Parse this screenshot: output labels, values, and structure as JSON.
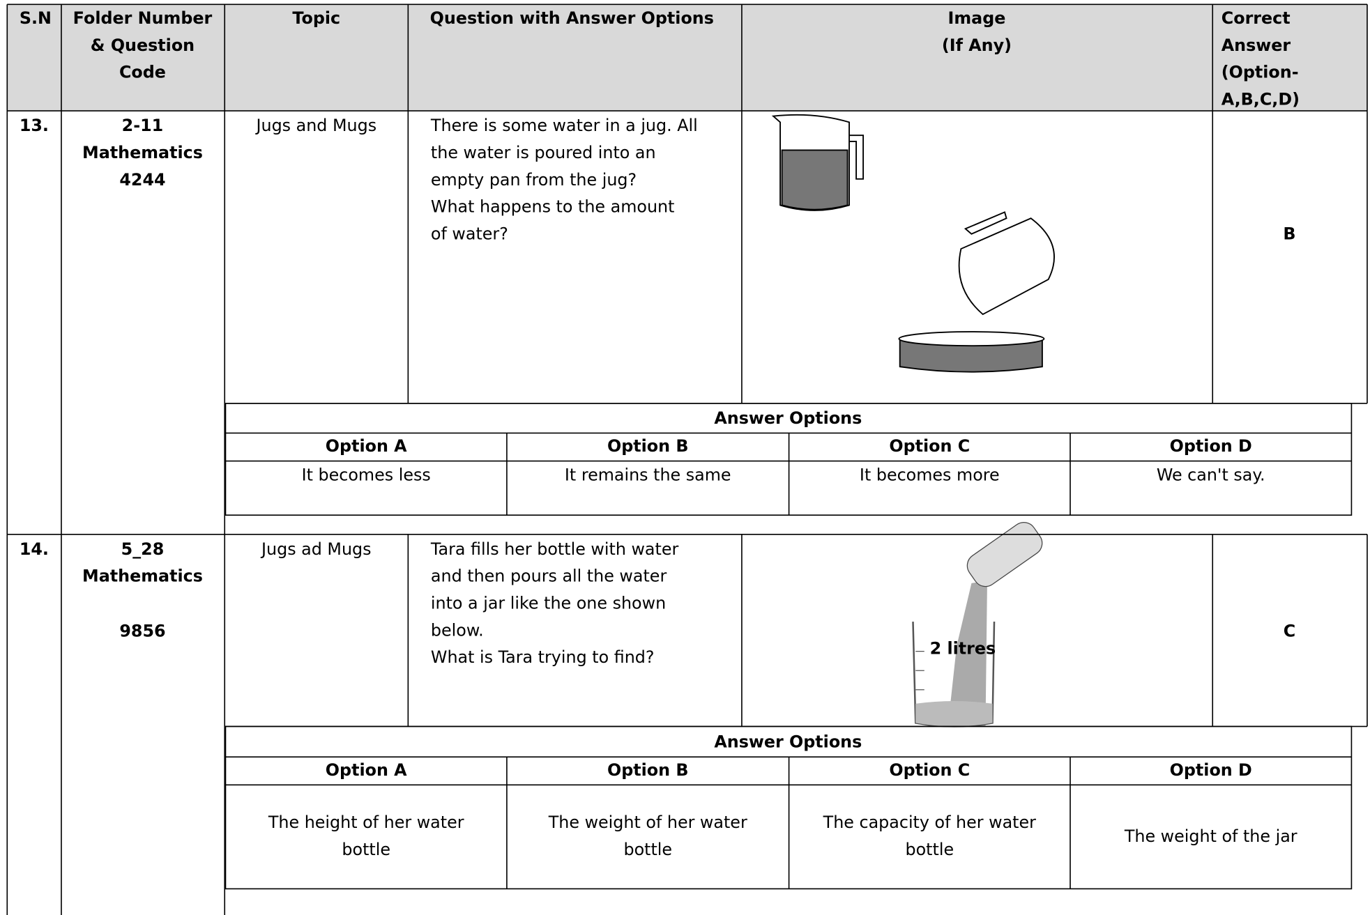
{
  "header": [
    [
      "S.N"
    ],
    [
      "Folder Number",
      "& Question",
      "Code"
    ],
    [
      "Topic"
    ],
    [
      "Question with Answer Options"
    ],
    [
      "Image",
      "(If Any)"
    ],
    [
      "Correct",
      "Answer",
      "(Option-",
      "A,B,C,D)"
    ]
  ],
  "rows": [
    {
      "sn": "13.",
      "code": [
        "2-11",
        "Mathematics",
        "4244"
      ],
      "topic": "Jugs and Mugs",
      "question": [
        "There is some water in a jug. All",
        "the water is poured into an",
        "empty pan from the jug?",
        "What happens to the amount",
        "of water?"
      ],
      "answer": "B",
      "options_title": "Answer Options",
      "options": [
        {
          "label": "Option A",
          "text": [
            "It becomes less"
          ]
        },
        {
          "label": "Option B",
          "text": [
            "It remains the same"
          ]
        },
        {
          "label": "Option C",
          "text": [
            "It becomes more"
          ]
        },
        {
          "label": "Option D",
          "text": [
            "We can't say."
          ]
        }
      ]
    },
    {
      "sn": "14.",
      "code": [
        "5_28",
        "Mathematics",
        "9856"
      ],
      "topic": "Jugs ad Mugs",
      "question": [
        "Tara fills her bottle with water",
        "and then pours all the water",
        "into a jar like the one shown",
        "below.",
        "What is Tara trying to find?"
      ],
      "image_label": "2 litres",
      "answer": "C",
      "options_title": "Answer Options",
      "options": [
        {
          "label": "Option A",
          "text": [
            "The height of her water",
            "bottle"
          ]
        },
        {
          "label": "Option B",
          "text": [
            "The weight of her water",
            "bottle"
          ]
        },
        {
          "label": "Option C",
          "text": [
            "The capacity of her water",
            "bottle"
          ]
        },
        {
          "label": "Option D",
          "text": [
            "The weight of the jar"
          ]
        }
      ]
    }
  ]
}
